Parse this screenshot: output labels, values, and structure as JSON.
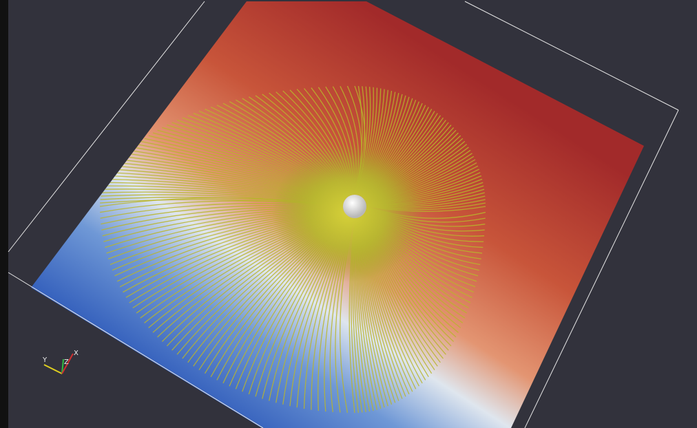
{
  "orientation_axes": {
    "labels": [
      "Y",
      "Z",
      "X"
    ]
  }
}
